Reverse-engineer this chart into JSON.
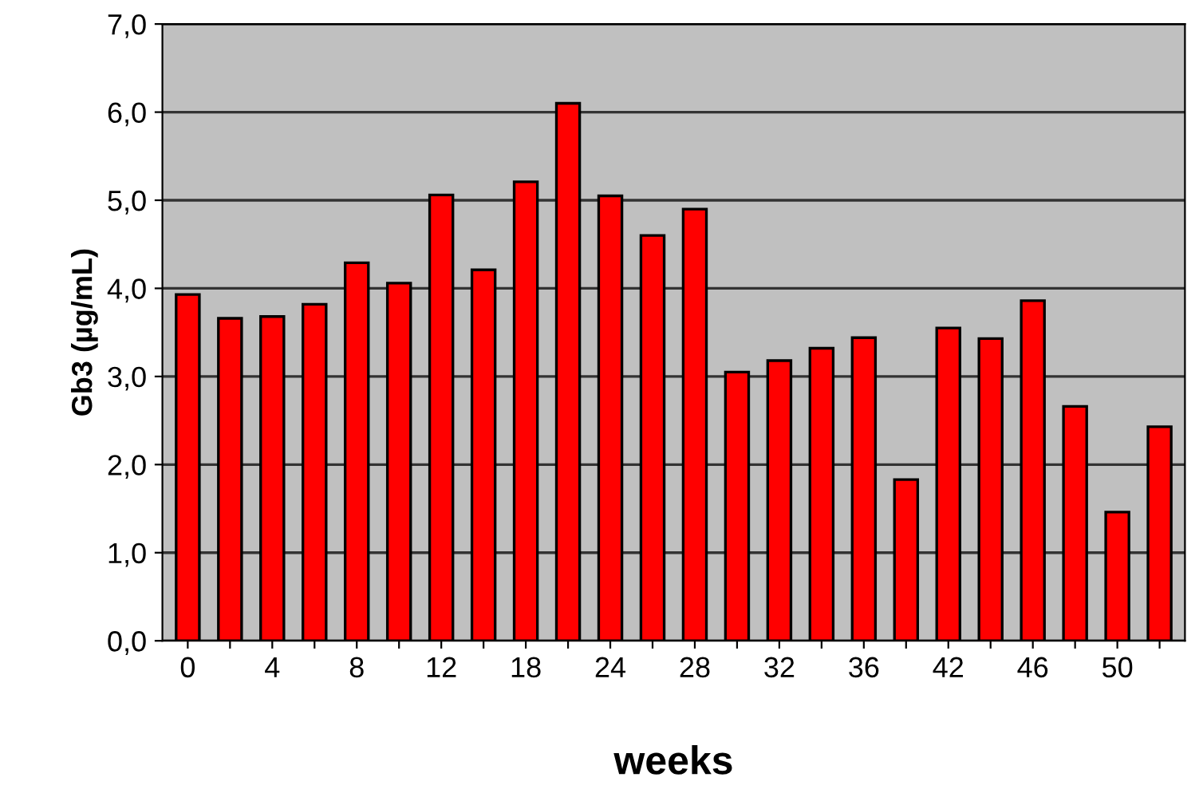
{
  "chart_data": {
    "type": "bar",
    "xlabel": "weeks",
    "ylabel": "Gb3 (µg/mL)",
    "categories": [
      "0",
      null,
      "4",
      null,
      "8",
      null,
      "12",
      null,
      "18",
      null,
      "24",
      null,
      "28",
      null,
      "32",
      null,
      "36",
      null,
      "42",
      null,
      "46",
      null,
      "50",
      null
    ],
    "values": [
      3.93,
      3.66,
      3.68,
      3.82,
      4.29,
      4.06,
      5.06,
      4.21,
      5.21,
      6.1,
      5.05,
      4.6,
      4.9,
      3.05,
      3.18,
      3.32,
      3.44,
      1.83,
      3.55,
      3.43,
      3.86,
      2.66,
      1.46,
      2.43
    ],
    "color": "#ff0000",
    "ylim": [
      0,
      7
    ],
    "yticks": [
      {
        "value": 0,
        "label": "0,0"
      },
      {
        "value": 1,
        "label": "1,0"
      },
      {
        "value": 2,
        "label": "2,0"
      },
      {
        "value": 3,
        "label": "3,0"
      },
      {
        "value": 4,
        "label": "4,0"
      },
      {
        "value": 5,
        "label": "5,0"
      },
      {
        "value": 6,
        "label": "6,0"
      },
      {
        "value": 7,
        "label": "7,0"
      }
    ],
    "grid": "y"
  }
}
